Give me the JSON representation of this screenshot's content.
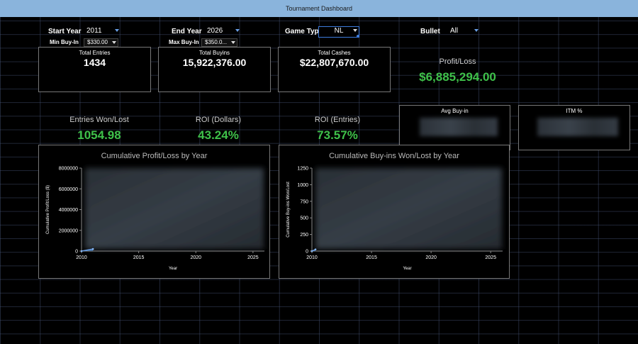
{
  "window": {
    "title": "Tournament Dashboard"
  },
  "filters": {
    "start_year": {
      "label": "Start Year",
      "value": "2011"
    },
    "end_year": {
      "label": "End Year",
      "value": "2026"
    },
    "game_type": {
      "label": "Game Type",
      "value": "NL"
    },
    "bullet": {
      "label": "Bullet",
      "value": "All"
    },
    "min_buyin": {
      "label": "Min Buy-In",
      "value": "$330.00"
    },
    "max_buyin": {
      "label": "Max Buy-In",
      "value": "$350.0..."
    }
  },
  "cards": {
    "total_entries": {
      "label": "Total Entries",
      "value": "1434"
    },
    "total_buyins": {
      "label": "Total Buyins",
      "value": "15,922,376.00"
    },
    "total_cashes": {
      "label": "Total Cashes",
      "value": "$22,807,670.00"
    },
    "avg_buyin": {
      "label": "Avg Buy-in"
    },
    "itm_pct": {
      "label": "ITM %"
    }
  },
  "kpis": {
    "profit_loss": {
      "label": "Profit/Loss",
      "value": "$6,885,294.00"
    },
    "entries_won_lost": {
      "label": "Entries Won/Lost",
      "value": "1054.98"
    },
    "roi_dollars": {
      "label": "ROI (Dollars)",
      "value": "43.24%"
    },
    "roi_entries": {
      "label": "ROI (Entries)",
      "value": "73.57%"
    }
  },
  "colors": {
    "positive": "#3fc14a",
    "accent": "#6aa0e8",
    "titlebar": "#8ab4dc"
  },
  "chart_data": [
    {
      "type": "area",
      "title": "Cumulative Profit/Loss by Year",
      "xlabel": "Year",
      "ylabel": "Cumulative Profit/Loss ($)",
      "xlim": [
        2010,
        2026
      ],
      "ylim": [
        0,
        8000000
      ],
      "xticks": [
        "2010",
        "2015",
        "2020",
        "2025"
      ],
      "yticks": [
        "0",
        "2000000",
        "4000000",
        "6000000",
        "8000000"
      ],
      "x": [
        2010,
        2011
      ],
      "values": [
        0,
        200000
      ]
    },
    {
      "type": "area",
      "title": "Cumulative Buy-ins Won/Lost by Year",
      "xlabel": "Year",
      "ylabel": "Cumulative Buy-ins Won/Lost",
      "xlim": [
        2010,
        2026
      ],
      "ylim": [
        0,
        1250
      ],
      "xticks": [
        "2010",
        "2015",
        "2020",
        "2025"
      ],
      "yticks": [
        "0",
        "250",
        "500",
        "750",
        "1000",
        "1250"
      ],
      "x": [
        2010,
        2010.3
      ],
      "values": [
        0,
        25
      ]
    }
  ]
}
